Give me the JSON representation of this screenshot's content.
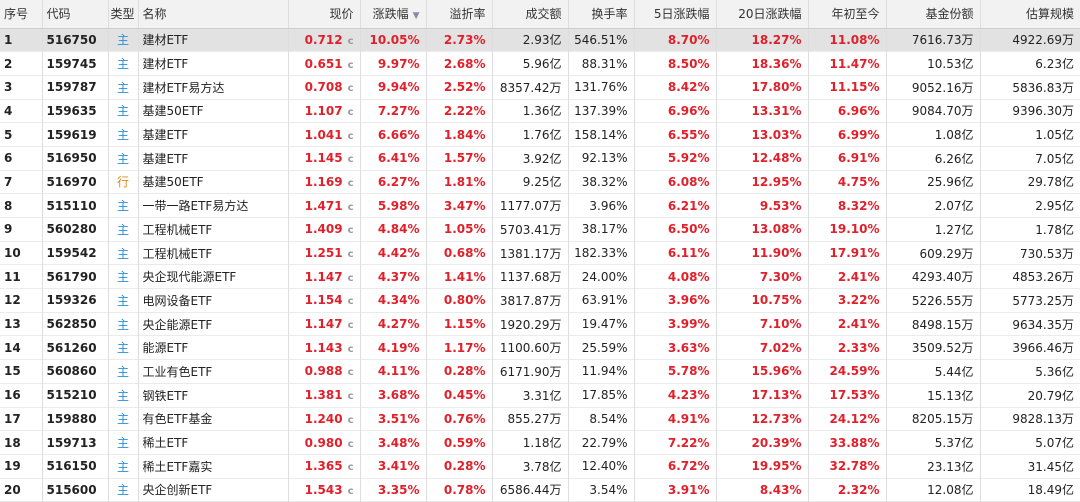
{
  "colors": {
    "up": "#e0202a",
    "zhu": "#2a8fd6",
    "hang": "#d9891a",
    "selected_row": "#e2e2e2"
  },
  "icons": {
    "sort": "sort-desc-triangle-icon"
  },
  "headers": {
    "idx": "序号",
    "code": "代码",
    "type": "类型",
    "name": "名称",
    "price": "现价",
    "chg": "涨跌幅",
    "premium": "溢折率",
    "turnover": "成交额",
    "turnrate": "换手率",
    "chg5": "5日涨跌幅",
    "chg20": "20日涨跌幅",
    "ytd": "年初至今",
    "shares": "基金份额",
    "scale": "估算规模"
  },
  "price_suffix": "c",
  "rows": [
    {
      "idx": "1",
      "code": "516750",
      "type": "主",
      "name": "建材ETF",
      "price": "0.712",
      "chg": "10.05%",
      "premium": "2.73%",
      "turnover": "2.93亿",
      "turnrate": "546.51%",
      "chg5": "8.70%",
      "chg20": "18.27%",
      "ytd": "11.08%",
      "shares": "7616.73万",
      "scale": "4922.69万"
    },
    {
      "idx": "2",
      "code": "159745",
      "type": "主",
      "name": "建材ETF",
      "price": "0.651",
      "chg": "9.97%",
      "premium": "2.68%",
      "turnover": "5.96亿",
      "turnrate": "88.31%",
      "chg5": "8.50%",
      "chg20": "18.36%",
      "ytd": "11.47%",
      "shares": "10.53亿",
      "scale": "6.23亿"
    },
    {
      "idx": "3",
      "code": "159787",
      "type": "主",
      "name": "建材ETF易方达",
      "price": "0.708",
      "chg": "9.94%",
      "premium": "2.52%",
      "turnover": "8357.42万",
      "turnrate": "131.76%",
      "chg5": "8.42%",
      "chg20": "17.80%",
      "ytd": "11.15%",
      "shares": "9052.16万",
      "scale": "5836.83万"
    },
    {
      "idx": "4",
      "code": "159635",
      "type": "主",
      "name": "基建50ETF",
      "price": "1.107",
      "chg": "7.27%",
      "premium": "2.22%",
      "turnover": "1.36亿",
      "turnrate": "137.39%",
      "chg5": "6.96%",
      "chg20": "13.31%",
      "ytd": "6.96%",
      "shares": "9084.70万",
      "scale": "9396.30万"
    },
    {
      "idx": "5",
      "code": "159619",
      "type": "主",
      "name": "基建ETF",
      "price": "1.041",
      "chg": "6.66%",
      "premium": "1.84%",
      "turnover": "1.76亿",
      "turnrate": "158.14%",
      "chg5": "6.55%",
      "chg20": "13.03%",
      "ytd": "6.99%",
      "shares": "1.08亿",
      "scale": "1.05亿"
    },
    {
      "idx": "6",
      "code": "516950",
      "type": "主",
      "name": "基建ETF",
      "price": "1.145",
      "chg": "6.41%",
      "premium": "1.57%",
      "turnover": "3.92亿",
      "turnrate": "92.13%",
      "chg5": "5.92%",
      "chg20": "12.48%",
      "ytd": "6.91%",
      "shares": "6.26亿",
      "scale": "7.05亿"
    },
    {
      "idx": "7",
      "code": "516970",
      "type": "行",
      "name": "基建50ETF",
      "price": "1.169",
      "chg": "6.27%",
      "premium": "1.81%",
      "turnover": "9.25亿",
      "turnrate": "38.32%",
      "chg5": "6.08%",
      "chg20": "12.95%",
      "ytd": "4.75%",
      "shares": "25.96亿",
      "scale": "29.78亿"
    },
    {
      "idx": "8",
      "code": "515110",
      "type": "主",
      "name": "一带一路ETF易方达",
      "price": "1.471",
      "chg": "5.98%",
      "premium": "3.47%",
      "turnover": "1177.07万",
      "turnrate": "3.96%",
      "chg5": "6.21%",
      "chg20": "9.53%",
      "ytd": "8.32%",
      "shares": "2.07亿",
      "scale": "2.95亿"
    },
    {
      "idx": "9",
      "code": "560280",
      "type": "主",
      "name": "工程机械ETF",
      "price": "1.409",
      "chg": "4.84%",
      "premium": "1.05%",
      "turnover": "5703.41万",
      "turnrate": "38.17%",
      "chg5": "6.50%",
      "chg20": "13.08%",
      "ytd": "19.10%",
      "shares": "1.27亿",
      "scale": "1.78亿"
    },
    {
      "idx": "10",
      "code": "159542",
      "type": "主",
      "name": "工程机械ETF",
      "price": "1.251",
      "chg": "4.42%",
      "premium": "0.68%",
      "turnover": "1381.17万",
      "turnrate": "182.33%",
      "chg5": "6.11%",
      "chg20": "11.90%",
      "ytd": "17.91%",
      "shares": "609.29万",
      "scale": "730.53万"
    },
    {
      "idx": "11",
      "code": "561790",
      "type": "主",
      "name": "央企现代能源ETF",
      "price": "1.147",
      "chg": "4.37%",
      "premium": "1.41%",
      "turnover": "1137.68万",
      "turnrate": "24.00%",
      "chg5": "4.08%",
      "chg20": "7.30%",
      "ytd": "2.41%",
      "shares": "4293.40万",
      "scale": "4853.26万"
    },
    {
      "idx": "12",
      "code": "159326",
      "type": "主",
      "name": "电网设备ETF",
      "price": "1.154",
      "chg": "4.34%",
      "premium": "0.80%",
      "turnover": "3817.87万",
      "turnrate": "63.91%",
      "chg5": "3.96%",
      "chg20": "10.75%",
      "ytd": "3.22%",
      "shares": "5226.55万",
      "scale": "5773.25万"
    },
    {
      "idx": "13",
      "code": "562850",
      "type": "主",
      "name": "央企能源ETF",
      "price": "1.147",
      "chg": "4.27%",
      "premium": "1.15%",
      "turnover": "1920.29万",
      "turnrate": "19.47%",
      "chg5": "3.99%",
      "chg20": "7.10%",
      "ytd": "2.41%",
      "shares": "8498.15万",
      "scale": "9634.35万"
    },
    {
      "idx": "14",
      "code": "561260",
      "type": "主",
      "name": "能源ETF",
      "price": "1.143",
      "chg": "4.19%",
      "premium": "1.17%",
      "turnover": "1100.60万",
      "turnrate": "25.59%",
      "chg5": "3.63%",
      "chg20": "7.02%",
      "ytd": "2.33%",
      "shares": "3509.52万",
      "scale": "3966.46万"
    },
    {
      "idx": "15",
      "code": "560860",
      "type": "主",
      "name": "工业有色ETF",
      "price": "0.988",
      "chg": "4.11%",
      "premium": "0.28%",
      "turnover": "6171.90万",
      "turnrate": "11.94%",
      "chg5": "5.78%",
      "chg20": "15.96%",
      "ytd": "24.59%",
      "shares": "5.44亿",
      "scale": "5.36亿"
    },
    {
      "idx": "16",
      "code": "515210",
      "type": "主",
      "name": "钢铁ETF",
      "price": "1.381",
      "chg": "3.68%",
      "premium": "0.45%",
      "turnover": "3.31亿",
      "turnrate": "17.85%",
      "chg5": "4.23%",
      "chg20": "17.13%",
      "ytd": "17.53%",
      "shares": "15.13亿",
      "scale": "20.79亿"
    },
    {
      "idx": "17",
      "code": "159880",
      "type": "主",
      "name": "有色ETF基金",
      "price": "1.240",
      "chg": "3.51%",
      "premium": "0.76%",
      "turnover": "855.27万",
      "turnrate": "8.54%",
      "chg5": "4.91%",
      "chg20": "12.73%",
      "ytd": "24.12%",
      "shares": "8205.15万",
      "scale": "9828.13万"
    },
    {
      "idx": "18",
      "code": "159713",
      "type": "主",
      "name": "稀土ETF",
      "price": "0.980",
      "chg": "3.48%",
      "premium": "0.59%",
      "turnover": "1.18亿",
      "turnrate": "22.79%",
      "chg5": "7.22%",
      "chg20": "20.39%",
      "ytd": "33.88%",
      "shares": "5.37亿",
      "scale": "5.07亿"
    },
    {
      "idx": "19",
      "code": "516150",
      "type": "主",
      "name": "稀土ETF嘉实",
      "price": "1.365",
      "chg": "3.41%",
      "premium": "0.28%",
      "turnover": "3.78亿",
      "turnrate": "12.40%",
      "chg5": "6.72%",
      "chg20": "19.95%",
      "ytd": "32.78%",
      "shares": "23.13亿",
      "scale": "31.45亿"
    },
    {
      "idx": "20",
      "code": "515600",
      "type": "主",
      "name": "央企创新ETF",
      "price": "1.543",
      "chg": "3.35%",
      "premium": "0.78%",
      "turnover": "6586.44万",
      "turnrate": "3.54%",
      "chg5": "3.91%",
      "chg20": "8.43%",
      "ytd": "2.32%",
      "shares": "12.08亿",
      "scale": "18.49亿"
    }
  ]
}
